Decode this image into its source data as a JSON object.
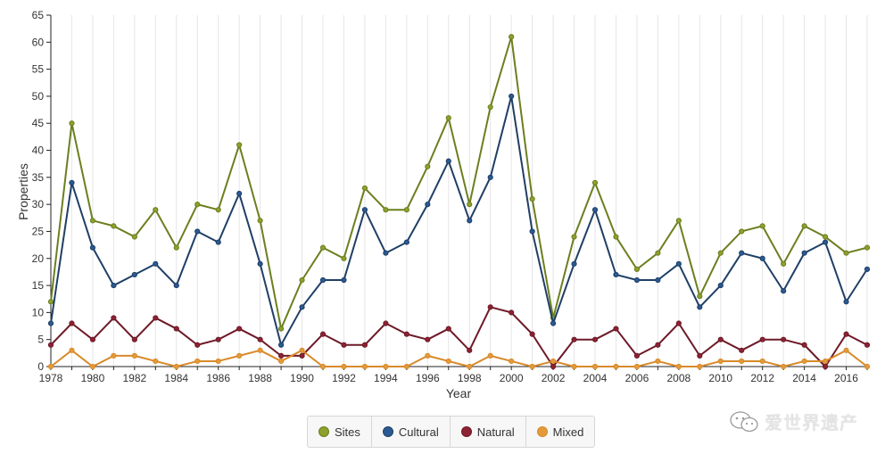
{
  "chart_data": {
    "type": "line",
    "xlabel": "Year",
    "ylabel": "Properties",
    "ylim": [
      0,
      65
    ],
    "yticks": [
      0,
      5,
      10,
      15,
      20,
      25,
      30,
      35,
      40,
      45,
      50,
      55,
      60,
      65
    ],
    "xlim": [
      1978,
      2017
    ],
    "xticks": [
      1978,
      1980,
      1982,
      1984,
      1986,
      1988,
      1990,
      1992,
      1994,
      1996,
      1998,
      2000,
      2002,
      2004,
      2006,
      2008,
      2010,
      2012,
      2014,
      2016
    ],
    "grid": "vertical",
    "legend_position": "bottom-center",
    "x": [
      1978,
      1979,
      1980,
      1981,
      1982,
      1983,
      1984,
      1985,
      1986,
      1987,
      1988,
      1989,
      1990,
      1991,
      1992,
      1993,
      1994,
      1995,
      1996,
      1997,
      1998,
      1999,
      2000,
      2001,
      2002,
      2003,
      2004,
      2005,
      2006,
      2007,
      2008,
      2009,
      2010,
      2011,
      2012,
      2013,
      2014,
      2015,
      2016,
      2017
    ],
    "series": [
      {
        "name": "Sites",
        "color": "#6b7f1f",
        "dot": "#8ca02c",
        "values": [
          12,
          45,
          27,
          26,
          24,
          29,
          22,
          30,
          29,
          41,
          27,
          7,
          16,
          22,
          20,
          33,
          29,
          29,
          37,
          46,
          30,
          48,
          61,
          31,
          9,
          24,
          34,
          24,
          18,
          21,
          27,
          13,
          21,
          25,
          26,
          19,
          26,
          24,
          21,
          22
        ]
      },
      {
        "name": "Cultural",
        "color": "#1f3f66",
        "dot": "#2a5a94",
        "values": [
          8,
          34,
          22,
          15,
          17,
          19,
          15,
          25,
          23,
          32,
          19,
          4,
          11,
          16,
          16,
          29,
          21,
          23,
          30,
          38,
          27,
          35,
          50,
          25,
          8,
          19,
          29,
          17,
          16,
          16,
          19,
          11,
          15,
          21,
          20,
          14,
          21,
          23,
          12,
          18
        ]
      },
      {
        "name": "Natural",
        "color": "#6e1a28",
        "dot": "#8c2233",
        "values": [
          4,
          8,
          5,
          9,
          5,
          9,
          7,
          4,
          5,
          7,
          5,
          2,
          2,
          6,
          4,
          4,
          8,
          6,
          5,
          7,
          3,
          11,
          10,
          6,
          0,
          5,
          5,
          7,
          2,
          4,
          8,
          2,
          5,
          3,
          5,
          5,
          4,
          0,
          6,
          4
        ]
      },
      {
        "name": "Mixed",
        "color": "#d88a2a",
        "dot": "#e39a3a",
        "values": [
          0,
          3,
          0,
          2,
          2,
          1,
          0,
          1,
          1,
          2,
          3,
          1,
          3,
          0,
          0,
          0,
          0,
          0,
          2,
          1,
          0,
          2,
          1,
          0,
          1,
          0,
          0,
          0,
          0,
          1,
          0,
          0,
          1,
          1,
          1,
          0,
          1,
          1,
          3,
          0
        ]
      }
    ]
  },
  "watermark": {
    "text": "爱世界遗产",
    "icon": "wechat-icon"
  }
}
